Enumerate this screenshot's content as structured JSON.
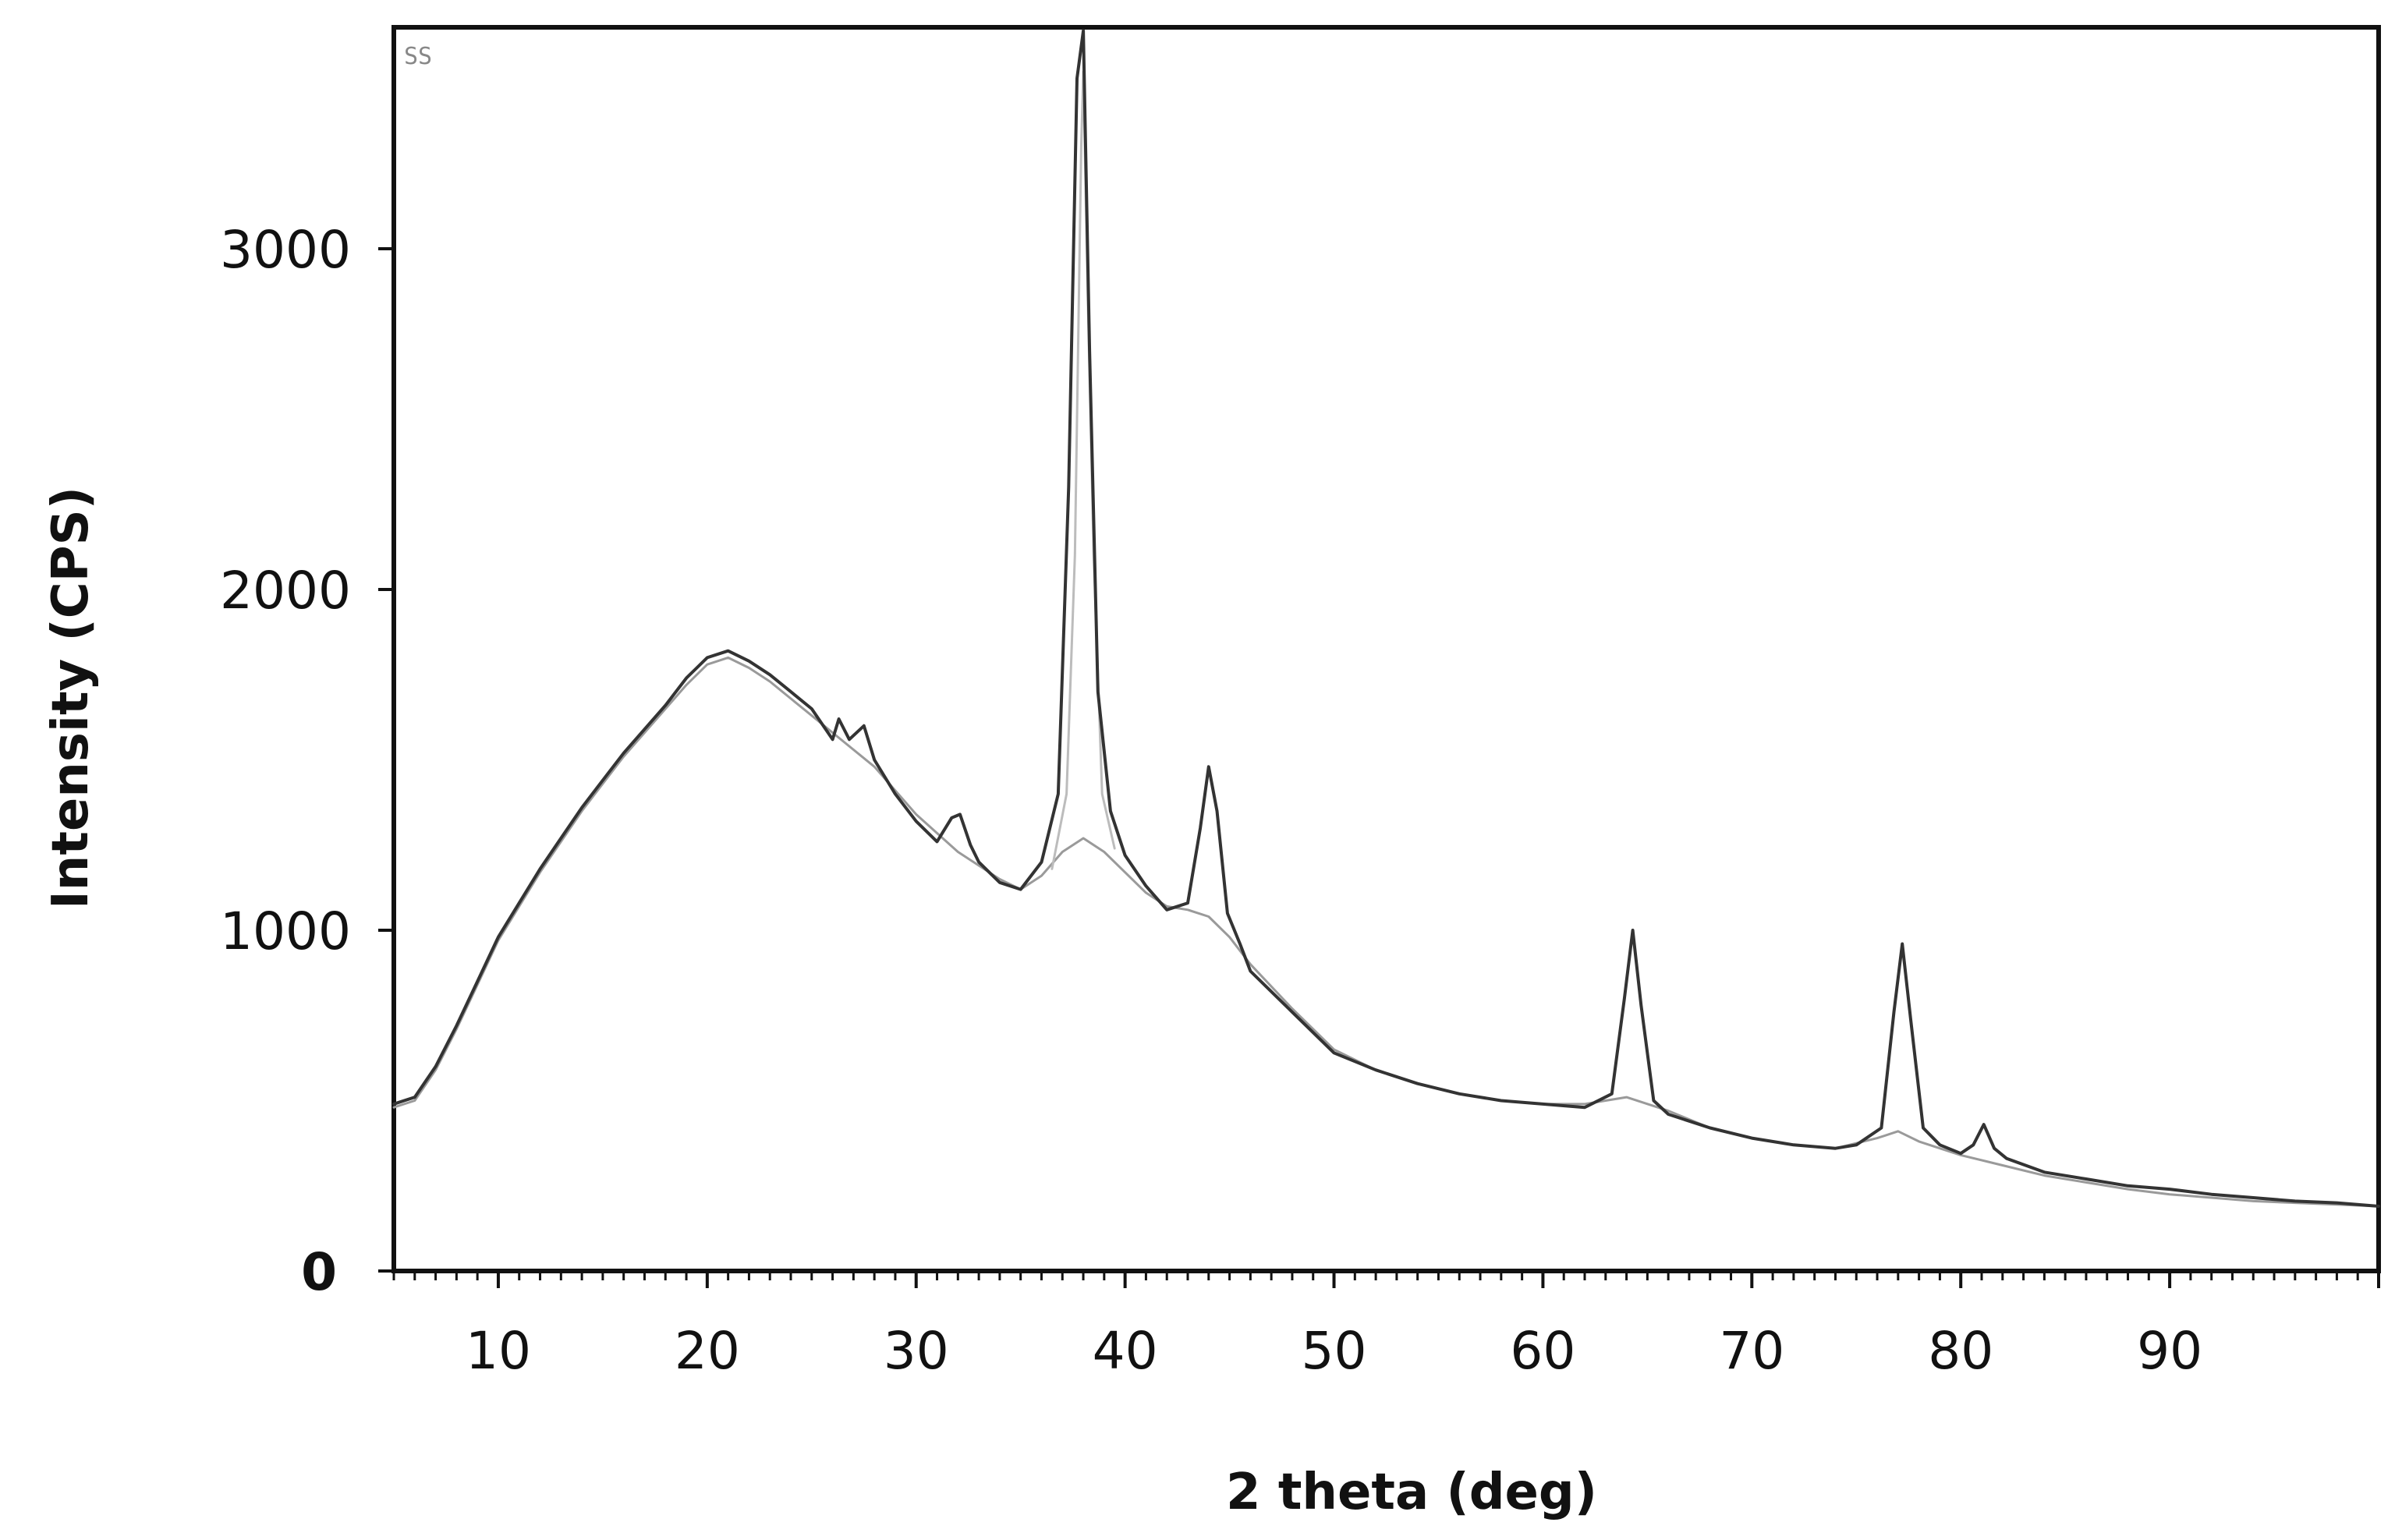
{
  "chart_data": {
    "type": "line",
    "title": "",
    "xlabel": "2 theta (deg)",
    "ylabel": "Intensity (CPS)",
    "sample_label": "SS",
    "xlim": [
      5,
      100
    ],
    "ylim": [
      0,
      3650
    ],
    "x_ticks": [
      10,
      20,
      30,
      40,
      50,
      60,
      70,
      80,
      90
    ],
    "y_ticks": [
      0,
      1000,
      2000,
      3000
    ],
    "grid": false,
    "legend": "none",
    "series": [
      {
        "role": "observed",
        "color": "#333333",
        "x": [
          5,
          6,
          7,
          8,
          9,
          10,
          11,
          12,
          13,
          14,
          15,
          16,
          17,
          18,
          19,
          20,
          21,
          22,
          23,
          24,
          25,
          26,
          26.3,
          26.8,
          27.5,
          28,
          29,
          30,
          31,
          31.7,
          32.1,
          32.6,
          33,
          34,
          35,
          36,
          36.8,
          37.3,
          37.7,
          38.0,
          38.3,
          38.7,
          39.3,
          40,
          41,
          42,
          43,
          43.6,
          44.0,
          44.4,
          44.9,
          45.5,
          46,
          48,
          50,
          52,
          54,
          56,
          58,
          60,
          62,
          63.3,
          63.9,
          64.3,
          64.7,
          65.3,
          66,
          68,
          70,
          72,
          74,
          75,
          76.2,
          76.8,
          77.2,
          77.6,
          78.2,
          79,
          80,
          80.6,
          81.1,
          81.6,
          82.2,
          84,
          86,
          88,
          90,
          92,
          94,
          96,
          98,
          100
        ],
        "y": [
          490,
          510,
          600,
          720,
          850,
          980,
          1080,
          1180,
          1270,
          1360,
          1440,
          1520,
          1590,
          1660,
          1740,
          1800,
          1820,
          1790,
          1750,
          1700,
          1650,
          1560,
          1620,
          1560,
          1600,
          1500,
          1400,
          1320,
          1260,
          1330,
          1340,
          1250,
          1200,
          1140,
          1120,
          1200,
          1400,
          2300,
          3500,
          3640,
          2700,
          1700,
          1350,
          1220,
          1130,
          1060,
          1080,
          1300,
          1480,
          1350,
          1050,
          960,
          880,
          760,
          640,
          590,
          550,
          520,
          500,
          490,
          480,
          520,
          800,
          1000,
          780,
          500,
          460,
          420,
          390,
          370,
          360,
          370,
          420,
          760,
          960,
          740,
          420,
          370,
          345,
          370,
          430,
          360,
          330,
          290,
          270,
          250,
          240,
          225,
          215,
          205,
          200,
          190
        ]
      },
      {
        "role": "background",
        "color": "#9a9a9a",
        "x": [
          5,
          6,
          7,
          8,
          9,
          10,
          11,
          12,
          13,
          14,
          15,
          16,
          17,
          18,
          19,
          20,
          21,
          22,
          23,
          24,
          25,
          26,
          28,
          30,
          32,
          34,
          35,
          36,
          37,
          38,
          39,
          40,
          41,
          42,
          43,
          44,
          45,
          46,
          48,
          50,
          52,
          54,
          56,
          58,
          60,
          62,
          64,
          66,
          68,
          70,
          72,
          74,
          76,
          77,
          78,
          80,
          82,
          84,
          86,
          88,
          90,
          92,
          94,
          96,
          98,
          100
        ],
        "y": [
          480,
          500,
          590,
          710,
          840,
          970,
          1070,
          1170,
          1260,
          1350,
          1430,
          1510,
          1580,
          1650,
          1720,
          1780,
          1800,
          1770,
          1730,
          1680,
          1630,
          1580,
          1480,
          1340,
          1230,
          1150,
          1120,
          1160,
          1230,
          1270,
          1230,
          1170,
          1110,
          1070,
          1060,
          1040,
          980,
          900,
          770,
          650,
          590,
          550,
          520,
          500,
          490,
          490,
          510,
          470,
          420,
          390,
          370,
          360,
          390,
          410,
          380,
          340,
          310,
          280,
          260,
          240,
          225,
          215,
          205,
          200,
          195,
          190
        ]
      },
      {
        "role": "fit",
        "color": "#bcbcbc",
        "x": [
          36.5,
          37.2,
          37.6,
          37.9,
          38.0,
          38.2,
          38.5,
          38.9,
          39.5
        ],
        "y": [
          1180,
          1400,
          2100,
          3300,
          3520,
          2900,
          2100,
          1400,
          1240
        ]
      }
    ]
  }
}
